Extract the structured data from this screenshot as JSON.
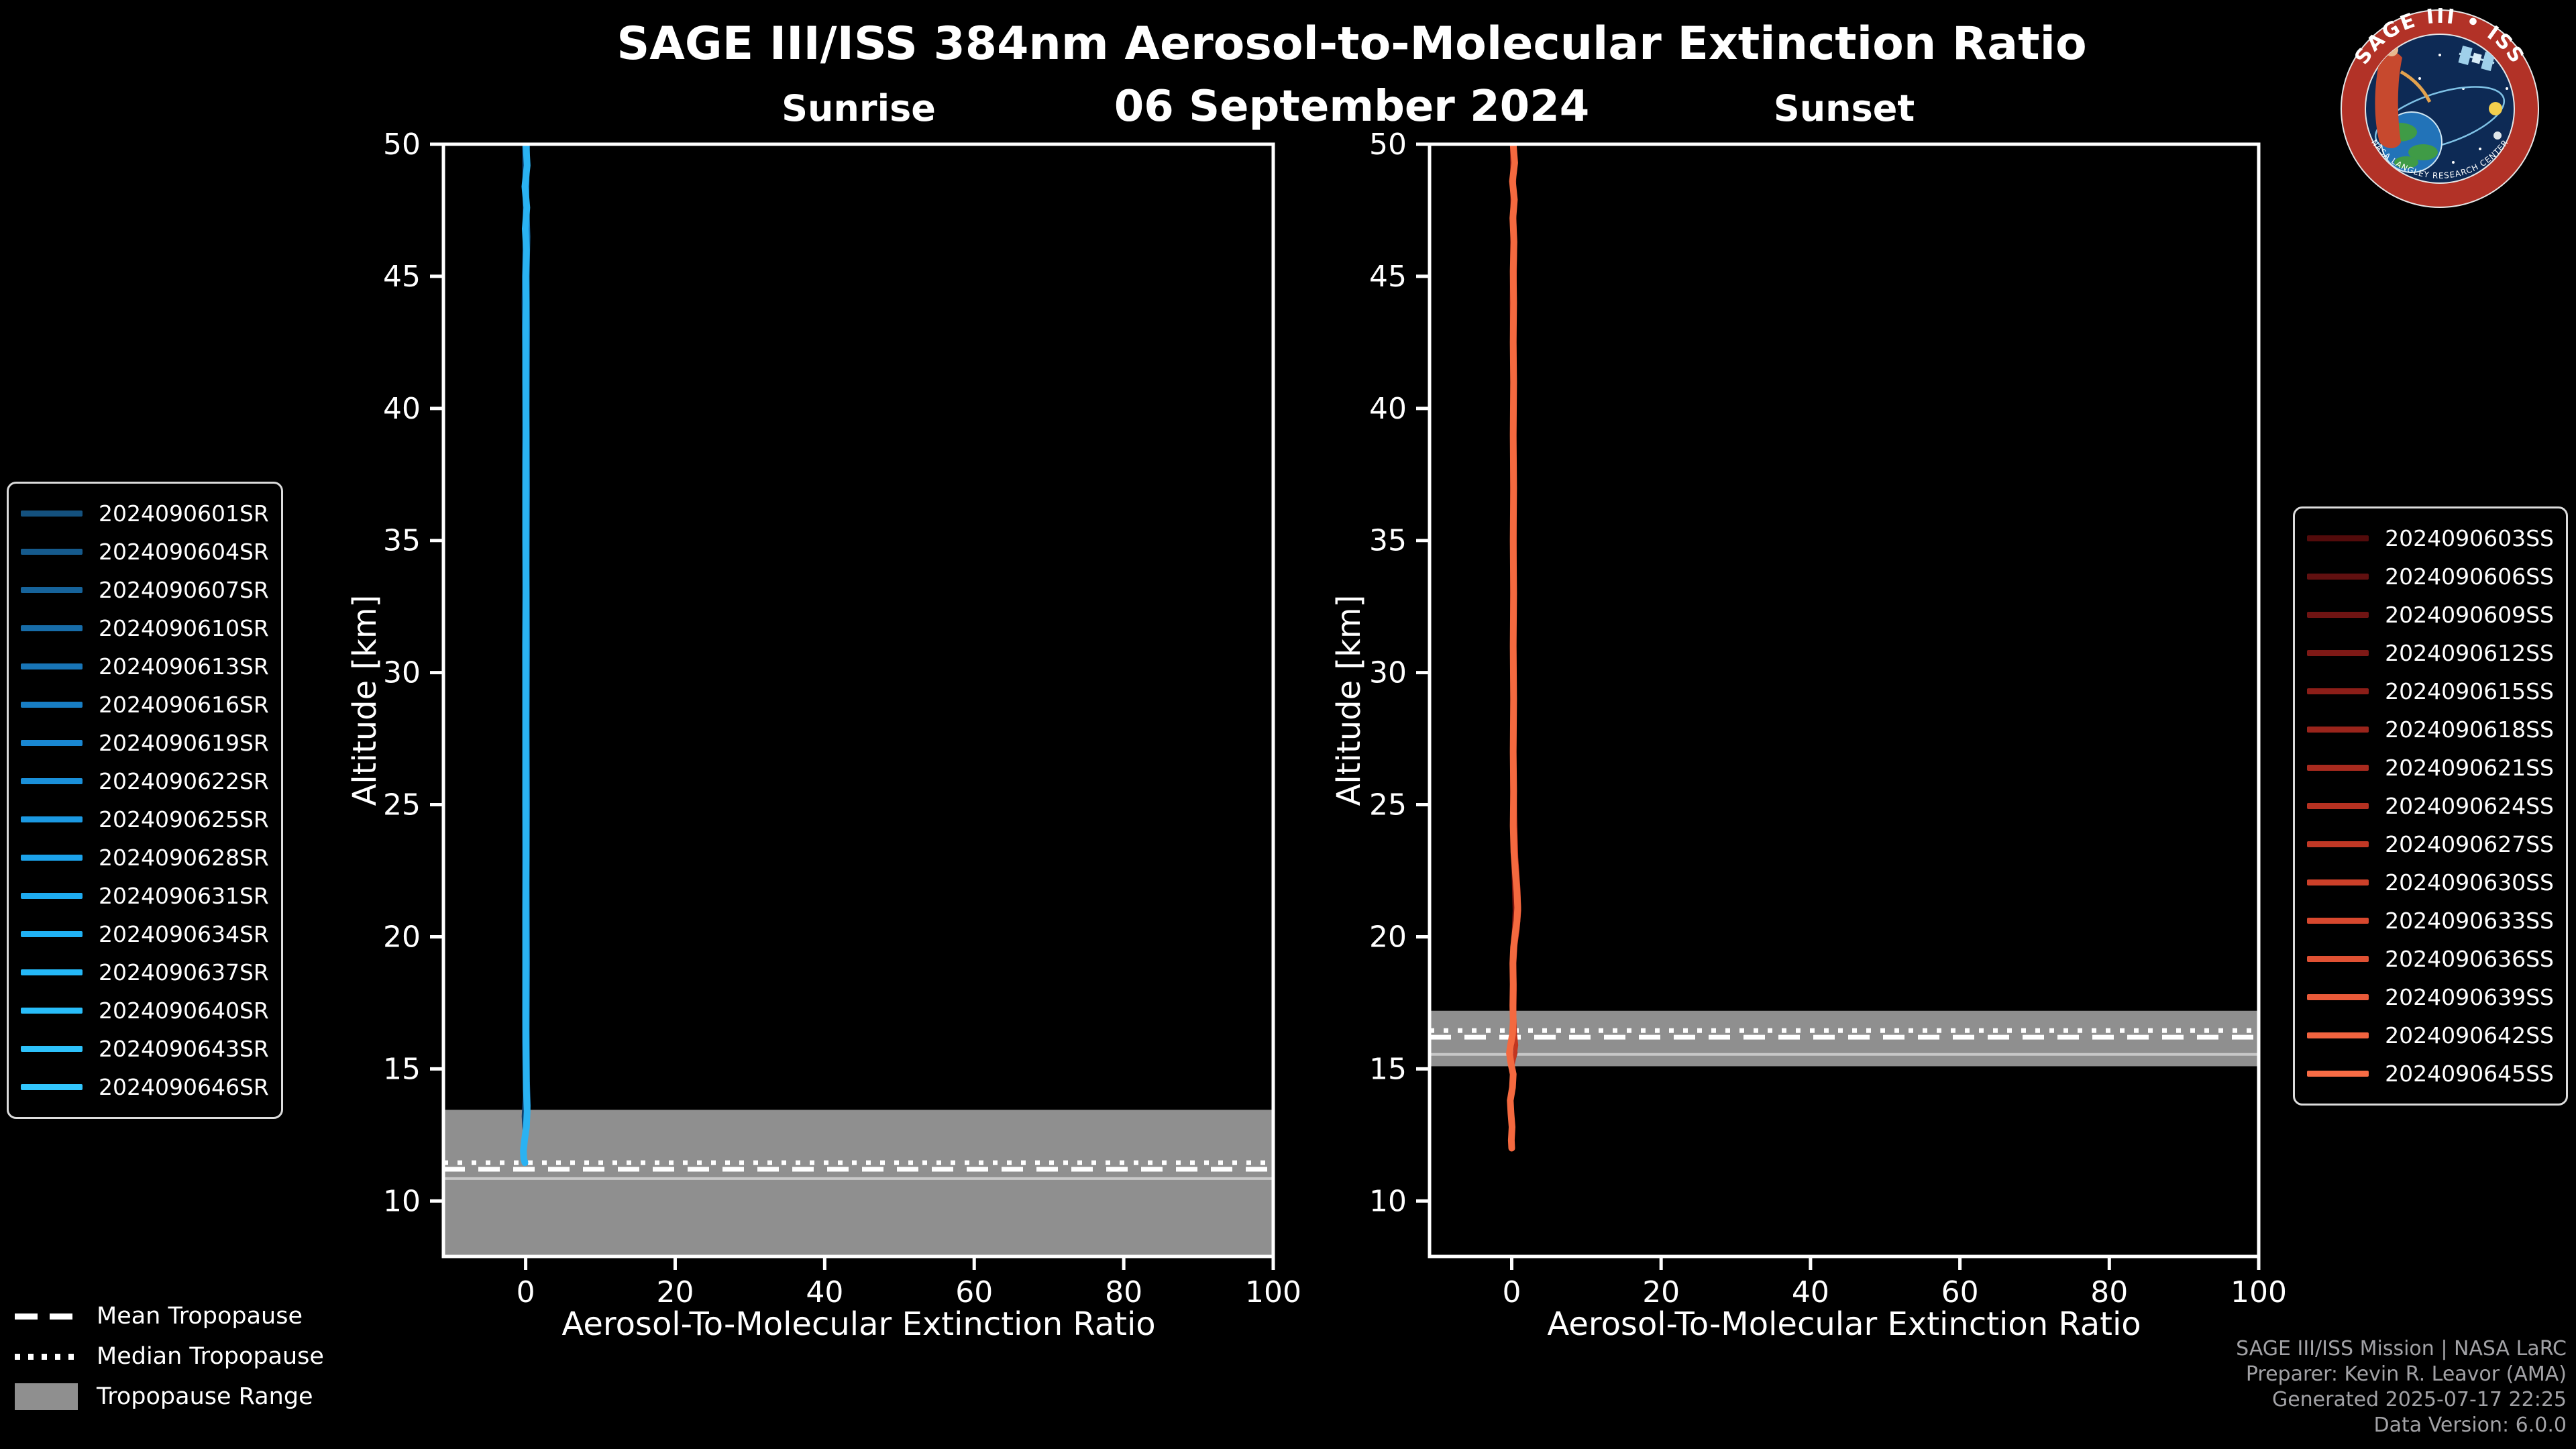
{
  "header": {
    "title": "SAGE III/ISS 384nm Aerosol-to-Molecular Extinction Ratio",
    "date": "06 September 2024"
  },
  "logo": {
    "top_text": "SAGE III • ISS",
    "bottom_text": "NASA LANGLEY RESEARCH CENTER"
  },
  "tropopause_legend": {
    "mean": "Mean Tropopause",
    "median": "Median Tropopause",
    "range": "Tropopause Range"
  },
  "credits": {
    "line1": "SAGE III/ISS Mission | NASA LaRC",
    "line2": "Preparer: Kevin R. Leavor (AMA)",
    "line3": "Generated 2025-07-17 22:25",
    "line4": "Data Version: 6.0.0"
  },
  "chart_data": {
    "type": "line",
    "title": "SAGE III/ISS 384nm Aerosol-to-Molecular Extinction Ratio",
    "subtitle": "06 September 2024",
    "panels": [
      {
        "id": "sunrise",
        "title": "Sunrise",
        "xlabel": "Aerosol-To-Molecular Extinction Ratio",
        "ylabel": "Altitude [km]",
        "xlim": [
          -11,
          100
        ],
        "ylim": [
          7.9,
          50
        ],
        "x_ticks": [
          0,
          20,
          40,
          60,
          80,
          100
        ],
        "y_ticks": [
          10,
          15,
          20,
          25,
          30,
          35,
          40,
          45,
          50
        ],
        "grid": false,
        "tropopause": {
          "range": [
            7.9,
            13.45
          ],
          "mean": 11.2,
          "median": 11.45,
          "inner_line": 10.85,
          "band_color": "#8f8f8f"
        },
        "profiles": [
          {
            "color": "#0d3f6e",
            "width": 5,
            "points": [
              [
                -0.25,
                50
              ],
              [
                -0.15,
                47
              ],
              [
                -0.3,
                44
              ],
              [
                -0.2,
                41
              ],
              [
                -0.25,
                38
              ],
              [
                -0.2,
                35
              ],
              [
                -0.25,
                31
              ],
              [
                -0.2,
                27
              ],
              [
                -0.25,
                23
              ],
              [
                -0.2,
                19
              ],
              [
                -0.25,
                16
              ],
              [
                -0.15,
                14
              ],
              [
                -0.3,
                13.2
              ],
              [
                -0.2,
                12.7
              ]
            ]
          },
          {
            "color": "#1878b8",
            "width": 6,
            "points": [
              [
                0.3,
                50
              ],
              [
                0.2,
                48
              ],
              [
                0.35,
                46.5
              ],
              [
                0.25,
                45
              ],
              [
                0.3,
                43
              ],
              [
                0.25,
                40
              ],
              [
                0.3,
                37
              ],
              [
                0.25,
                34
              ],
              [
                0.3,
                31
              ],
              [
                0.25,
                28
              ],
              [
                0.3,
                25
              ],
              [
                0.25,
                22
              ],
              [
                0.3,
                19
              ],
              [
                0.25,
                16.5
              ],
              [
                0.3,
                14.5
              ],
              [
                0.4,
                13.6
              ],
              [
                0.25,
                13
              ],
              [
                0.1,
                12.5
              ]
            ]
          },
          {
            "color": "#2ab2f2",
            "width": 10,
            "points": [
              [
                0.05,
                50
              ],
              [
                0.2,
                49.2
              ],
              [
                -0.1,
                48.4
              ],
              [
                0.15,
                47.6
              ],
              [
                -0.05,
                46.8
              ],
              [
                0.1,
                46
              ],
              [
                0,
                45
              ],
              [
                0.05,
                44
              ],
              [
                0,
                43
              ],
              [
                0,
                41
              ],
              [
                0.05,
                39
              ],
              [
                0,
                37
              ],
              [
                0,
                35
              ],
              [
                0.05,
                33
              ],
              [
                0,
                31
              ],
              [
                0,
                29
              ],
              [
                0,
                27
              ],
              [
                0,
                25
              ],
              [
                0.05,
                23
              ],
              [
                0,
                21
              ],
              [
                0,
                19
              ],
              [
                0,
                17
              ],
              [
                0.05,
                15.5
              ],
              [
                0.1,
                14.2
              ],
              [
                0.2,
                13.4
              ],
              [
                0.1,
                12.8
              ],
              [
                -0.15,
                12.3
              ],
              [
                -0.3,
                11.9
              ],
              [
                -0.25,
                11.6
              ],
              [
                -0.1,
                11.45
              ]
            ]
          }
        ],
        "legend": [
          {
            "label": "2024090601SR",
            "color": "#14517e"
          },
          {
            "label": "2024090604SR",
            "color": "#155a8c"
          },
          {
            "label": "2024090607SR",
            "color": "#16639a"
          },
          {
            "label": "2024090610SR",
            "color": "#176ca8"
          },
          {
            "label": "2024090613SR",
            "color": "#1875b6"
          },
          {
            "label": "2024090616SR",
            "color": "#187ec4"
          },
          {
            "label": "2024090619SR",
            "color": "#1987d2"
          },
          {
            "label": "2024090622SR",
            "color": "#1a90da"
          },
          {
            "label": "2024090625SR",
            "color": "#1b99e2"
          },
          {
            "label": "2024090628SR",
            "color": "#1ca2ea"
          },
          {
            "label": "2024090631SR",
            "color": "#1eabf0"
          },
          {
            "label": "2024090634SR",
            "color": "#20b2f4"
          },
          {
            "label": "2024090637SR",
            "color": "#24b8f7"
          },
          {
            "label": "2024090640SR",
            "color": "#28bdf9"
          },
          {
            "label": "2024090643SR",
            "color": "#2dc2fb"
          },
          {
            "label": "2024090646SR",
            "color": "#32c6fd"
          }
        ]
      },
      {
        "id": "sunset",
        "title": "Sunset",
        "xlabel": "Aerosol-To-Molecular Extinction Ratio",
        "ylabel": "Altitude [km]",
        "xlim": [
          -11,
          100
        ],
        "ylim": [
          7.9,
          50
        ],
        "x_ticks": [
          0,
          20,
          40,
          60,
          80,
          100
        ],
        "y_ticks": [
          10,
          15,
          20,
          25,
          30,
          35,
          40,
          45,
          50
        ],
        "grid": false,
        "tropopause": {
          "range": [
            15.1,
            17.2
          ],
          "mean": 16.2,
          "median": 16.45,
          "inner_line": 15.55,
          "band_color": "#8f8f8f"
        },
        "profiles": [
          {
            "color": "#7a150f",
            "width": 6,
            "points": [
              [
                0.05,
                50
              ],
              [
                0.1,
                47
              ],
              [
                0,
                44
              ],
              [
                0.1,
                41
              ],
              [
                0.05,
                38
              ],
              [
                0.1,
                35
              ],
              [
                0.05,
                32
              ],
              [
                0.1,
                29
              ],
              [
                0.05,
                26
              ],
              [
                0.15,
                23.5
              ],
              [
                0.3,
                22
              ],
              [
                0.4,
                21
              ],
              [
                0.25,
                20
              ],
              [
                0.1,
                19
              ],
              [
                0.05,
                18
              ],
              [
                0.1,
                17
              ],
              [
                0.2,
                16.3
              ],
              [
                0.45,
                15.9
              ],
              [
                0.5,
                15.6
              ],
              [
                0.2,
                15.3
              ]
            ]
          },
          {
            "color": "#c23620",
            "width": 6,
            "points": [
              [
                0.4,
                50
              ],
              [
                0.3,
                48
              ],
              [
                0.45,
                46
              ],
              [
                0.35,
                44
              ],
              [
                0.4,
                41
              ],
              [
                0.35,
                38
              ],
              [
                0.4,
                35
              ],
              [
                0.35,
                32
              ],
              [
                0.4,
                29
              ],
              [
                0.35,
                26.5
              ],
              [
                0.45,
                24.5
              ],
              [
                0.6,
                23
              ],
              [
                0.9,
                21.8
              ],
              [
                1.0,
                21.0
              ],
              [
                0.8,
                20.3
              ],
              [
                0.5,
                19.7
              ],
              [
                0.35,
                19
              ],
              [
                0.4,
                18
              ],
              [
                0.35,
                17
              ],
              [
                0.45,
                16.3
              ],
              [
                0.6,
                15.9
              ],
              [
                0.4,
                15.5
              ],
              [
                0.15,
                15.2
              ]
            ]
          },
          {
            "color": "#f4693f",
            "width": 10,
            "points": [
              [
                0.2,
                50
              ],
              [
                0.4,
                49.3
              ],
              [
                0.1,
                48.6
              ],
              [
                0.35,
                47.9
              ],
              [
                0.15,
                47.2
              ],
              [
                0.3,
                46.3
              ],
              [
                0.2,
                45.2
              ],
              [
                0.25,
                44
              ],
              [
                0.2,
                42.5
              ],
              [
                0.25,
                41
              ],
              [
                0.2,
                39
              ],
              [
                0.25,
                37
              ],
              [
                0.2,
                35
              ],
              [
                0.25,
                33
              ],
              [
                0.2,
                31
              ],
              [
                0.25,
                29
              ],
              [
                0.2,
                27
              ],
              [
                0.25,
                25.5
              ],
              [
                0.2,
                24.2
              ],
              [
                0.3,
                23.2
              ],
              [
                0.5,
                22.4
              ],
              [
                0.7,
                21.7
              ],
              [
                0.8,
                21.1
              ],
              [
                0.7,
                20.6
              ],
              [
                0.45,
                20.1
              ],
              [
                0.25,
                19.6
              ],
              [
                0.15,
                19
              ],
              [
                0.2,
                18.2
              ],
              [
                0.15,
                17.4
              ],
              [
                0.2,
                16.8
              ],
              [
                0.1,
                16.3
              ],
              [
                -0.15,
                15.9
              ],
              [
                -0.3,
                15.6
              ],
              [
                -0.1,
                15.2
              ],
              [
                0.2,
                14.8
              ],
              [
                0.1,
                14.3
              ],
              [
                -0.2,
                13.8
              ],
              [
                -0.1,
                13.3
              ],
              [
                0.05,
                12.8
              ],
              [
                -0.05,
                12.3
              ],
              [
                0,
                12
              ]
            ]
          }
        ],
        "legend": [
          {
            "label": "2024090603SS",
            "color": "#530b0b"
          },
          {
            "label": "2024090606SS",
            "color": "#611010"
          },
          {
            "label": "2024090609SS",
            "color": "#701413"
          },
          {
            "label": "2024090612SS",
            "color": "#7e1916"
          },
          {
            "label": "2024090615SS",
            "color": "#8c1e18"
          },
          {
            "label": "2024090618SS",
            "color": "#9a241b"
          },
          {
            "label": "2024090621SS",
            "color": "#a82a1e"
          },
          {
            "label": "2024090624SS",
            "color": "#b53121"
          },
          {
            "label": "2024090627SS",
            "color": "#c13825"
          },
          {
            "label": "2024090630SS",
            "color": "#cc4029"
          },
          {
            "label": "2024090633SS",
            "color": "#d7482e"
          },
          {
            "label": "2024090636SS",
            "color": "#e05133"
          },
          {
            "label": "2024090639SS",
            "color": "#e95a39"
          },
          {
            "label": "2024090642SS",
            "color": "#f1633f"
          },
          {
            "label": "2024090645SS",
            "color": "#f76c45"
          }
        ]
      }
    ]
  }
}
